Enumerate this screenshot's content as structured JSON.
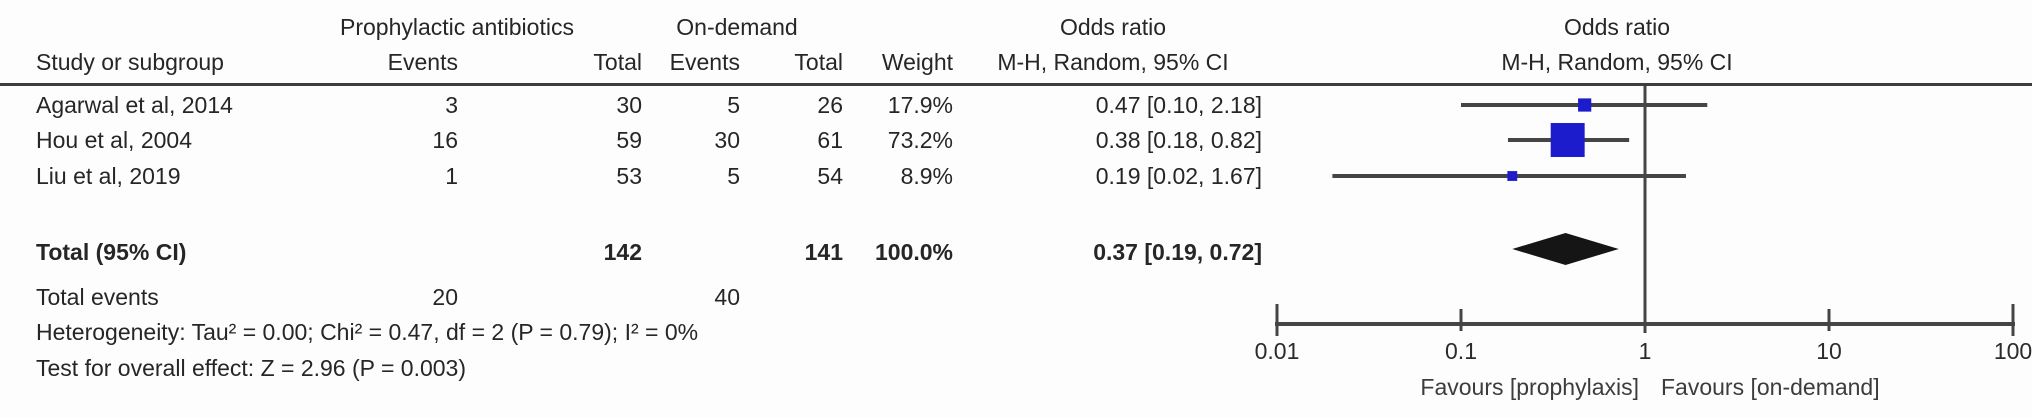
{
  "table": {
    "header": {
      "group1": "Prophylactic antibiotics",
      "group2": "On-demand",
      "study": "Study or subgroup",
      "events1": "Events",
      "total1": "Total",
      "events2": "Events",
      "total2": "Total",
      "weight": "Weight",
      "or_title": "Odds ratio",
      "or_subtitle": "M-H, Random, 95% CI"
    },
    "plot_header": {
      "title": "Odds ratio",
      "subtitle": "M-H, Random, 95% CI"
    },
    "rows": [
      {
        "study": "Agarwal et al, 2014",
        "events1": "3",
        "total1": "30",
        "events2": "5",
        "total2": "26",
        "weight": "17.9%",
        "ci": "0.47 [0.10, 2.18]"
      },
      {
        "study": "Hou et al, 2004",
        "events1": "16",
        "total1": "59",
        "events2": "30",
        "total2": "61",
        "weight": "73.2%",
        "ci": "0.38 [0.18, 0.82]"
      },
      {
        "study": "Liu et al, 2019",
        "events1": "1",
        "total1": "53",
        "events2": "5",
        "total2": "54",
        "weight": "8.9%",
        "ci": "0.19 [0.02, 1.67]"
      }
    ],
    "total_row": {
      "label": "Total (95% CI)",
      "total1": "142",
      "total2": "141",
      "weight": "100.0%",
      "ci": "0.37 [0.19, 0.72]"
    },
    "total_events_row": {
      "label": "Total events",
      "events1": "20",
      "events2": "40"
    },
    "heterogeneity": "Heterogeneity: Tau² = 0.00; Chi² = 0.47, df = 2 (P = 0.79); I² = 0%",
    "overall_effect": "Test for overall effect: Z = 2.96 (P = 0.003)"
  },
  "chart_data": {
    "type": "forest",
    "x_scale": "log10",
    "xlim": [
      0.01,
      100
    ],
    "ticks": [
      0.01,
      0.1,
      1,
      10,
      100
    ],
    "null_line": 1,
    "title": "Odds ratio",
    "subtitle": "M-H, Random, 95% CI",
    "studies": [
      {
        "name": "Agarwal et al, 2014",
        "or": 0.47,
        "ci_low": 0.1,
        "ci_high": 2.18,
        "weight_pct": 17.9
      },
      {
        "name": "Hou et al, 2004",
        "or": 0.38,
        "ci_low": 0.18,
        "ci_high": 0.82,
        "weight_pct": 73.2
      },
      {
        "name": "Liu et al, 2019",
        "or": 0.19,
        "ci_low": 0.02,
        "ci_high": 1.67,
        "weight_pct": 8.9
      }
    ],
    "summary": {
      "or": 0.37,
      "ci_low": 0.19,
      "ci_high": 0.72,
      "weight_pct": 100.0
    },
    "favours_left": "Favours [prophylaxis]",
    "favours_right": "Favours [on-demand]",
    "colors": {
      "square": "#1c1ccd",
      "diamond": "#151515",
      "line": "#454545",
      "text": "#2b2b2b"
    }
  }
}
